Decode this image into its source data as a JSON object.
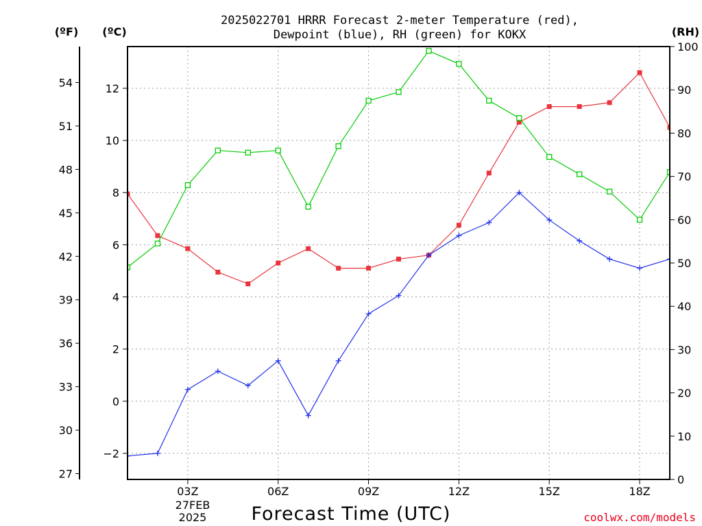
{
  "title_line1": "2025022701 HRRR Forecast 2-meter Temperature (red),",
  "title_line2": "Dewpoint (blue), RH (green) for KOKX",
  "units": {
    "fahrenheit": "(ºF)",
    "celsius": "(ºC)",
    "rh": "(RH)"
  },
  "xlabel": "Forecast Time (UTC)",
  "credit": "coolwx.com/models",
  "date_label": [
    "27FEB",
    "2025"
  ],
  "colors": {
    "temperature": "#e8343c",
    "dewpoint": "#2030e8",
    "rh": "#00cc00"
  },
  "chart_data": {
    "type": "line",
    "x": [
      1,
      2,
      3,
      4,
      5,
      6,
      7,
      8,
      9,
      10,
      11,
      12,
      13,
      14,
      15,
      16,
      17,
      18,
      19
    ],
    "x_ticks": [
      {
        "value": 3,
        "label": "03Z"
      },
      {
        "value": 6,
        "label": "06Z"
      },
      {
        "value": 9,
        "label": "09Z"
      },
      {
        "value": 12,
        "label": "12Z"
      },
      {
        "value": 15,
        "label": "15Z"
      },
      {
        "value": 18,
        "label": "18Z"
      }
    ],
    "xlim": [
      1,
      19
    ],
    "celsius_axis": {
      "lim": [
        -3,
        13.6
      ],
      "ticks": [
        -2,
        0,
        2,
        4,
        6,
        8,
        10,
        12
      ]
    },
    "fahrenheit_axis": {
      "ticks": [
        27,
        30,
        33,
        36,
        39,
        42,
        45,
        48,
        51,
        54
      ]
    },
    "rh_axis": {
      "lim": [
        0,
        100
      ],
      "ticks": [
        0,
        10,
        20,
        30,
        40,
        50,
        60,
        70,
        80,
        90,
        100
      ]
    },
    "grid": true,
    "series": [
      {
        "key": "temperature",
        "values": [
          7.95,
          6.35,
          5.85,
          4.95,
          4.5,
          5.3,
          5.85,
          5.1,
          5.1,
          5.45,
          5.6,
          6.75,
          8.75,
          10.7,
          11.3,
          11.3,
          11.45,
          12.6,
          10.5
        ]
      },
      {
        "key": "dewpoint",
        "values": [
          -2.1,
          -2.0,
          0.45,
          1.15,
          0.6,
          1.55,
          -0.55,
          1.55,
          3.35,
          4.05,
          5.6,
          6.35,
          6.85,
          8.0,
          6.95,
          6.15,
          5.45,
          5.1,
          5.45
        ]
      },
      {
        "key": "rh",
        "values": [
          49,
          54.5,
          68,
          76,
          75.5,
          76,
          63,
          77,
          87.5,
          89.5,
          99,
          96,
          87.5,
          83.5,
          74.5,
          70.5,
          66.5,
          60,
          71
        ]
      }
    ]
  }
}
